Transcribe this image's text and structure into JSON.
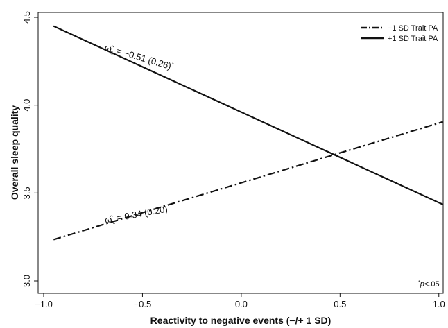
{
  "chart_data": {
    "type": "line",
    "xlabel": "Reactivity to negative events (−/+ 1 SD)",
    "ylabel": "Overall sleep quality",
    "xlim": [
      -1.0,
      1.05
    ],
    "ylim": [
      3.0,
      4.5
    ],
    "xticks": [
      -1.0,
      -0.5,
      0.0,
      0.5,
      1.0
    ],
    "xtick_labels": [
      "−1.0",
      "−0.5",
      "0.0",
      "0.5",
      "1.0"
    ],
    "yticks": [
      3.0,
      3.5,
      4.0,
      4.5
    ],
    "ytick_labels": [
      "3.0",
      "3.5",
      "4.0",
      "4.5"
    ],
    "grid": false,
    "legend_position": "top-right",
    "series": [
      {
        "name": "−1 SD Trait PA",
        "style": "dash-dot",
        "color": "#111111",
        "x": [
          -0.95,
          1.02
        ],
        "y": [
          3.235,
          3.905
        ]
      },
      {
        "name": "+1 SD Trait PA",
        "style": "solid",
        "color": "#111111",
        "x": [
          -0.95,
          1.02
        ],
        "y": [
          4.45,
          3.435
        ]
      }
    ],
    "annotations": [
      {
        "series": "+1 SD Trait PA",
        "symbol": "ω̂",
        "subscript": "1",
        "text": " = −0.51 (0.26)",
        "marker": "*"
      },
      {
        "series": "−1 SD Trait PA",
        "symbol": "ω̂",
        "subscript": "1",
        "text": " = 0.34 (0.20)",
        "marker": ""
      }
    ],
    "footnote": {
      "star": "*",
      "p": "p",
      "rest": "<.05"
    }
  }
}
